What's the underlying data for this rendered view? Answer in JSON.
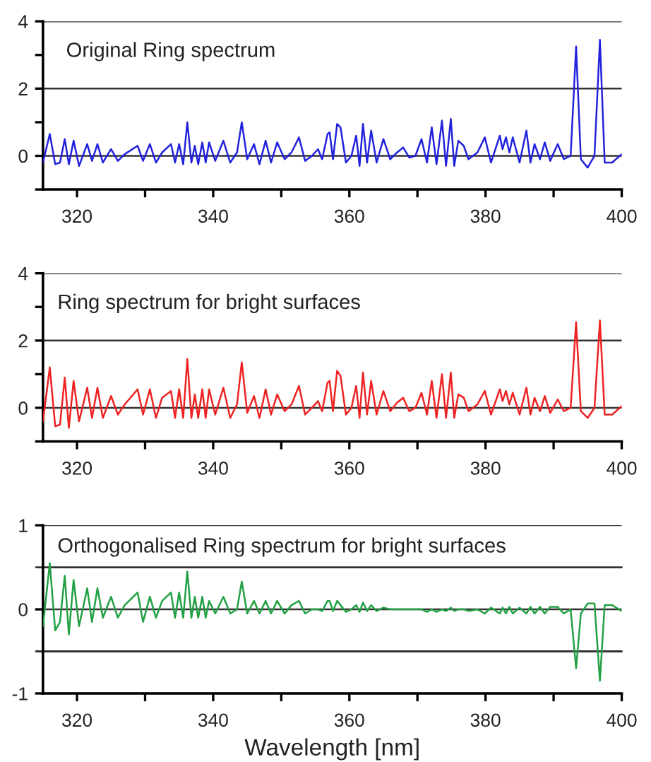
{
  "chart_data": [
    {
      "type": "line",
      "annotations": [
        "Original Ring spectrum"
      ],
      "xlim": [
        315,
        400
      ],
      "ylim": [
        -1,
        4
      ],
      "grid": "y",
      "legend": false,
      "marker": "none",
      "line_style": "solid",
      "xticks": [
        320,
        {
          "value": 330,
          "label": null
        },
        340,
        {
          "value": 350,
          "label": null
        },
        360,
        {
          "value": 370,
          "label": null
        },
        380,
        {
          "value": 390,
          "label": null
        },
        400
      ],
      "yticks": [
        {
          "value": -1,
          "label": null
        },
        0,
        {
          "value": 1,
          "label": null
        },
        2,
        {
          "value": 3,
          "label": null
        },
        4
      ],
      "x": [
        315,
        316,
        316.8,
        317.5,
        318.2,
        318.8,
        319.5,
        320.3,
        321.5,
        322.2,
        323,
        323.8,
        325,
        326,
        327,
        328.9,
        329.7,
        330.7,
        331.6,
        332.5,
        333.8,
        334.4,
        335,
        335.6,
        336.2,
        336.8,
        337.3,
        337.8,
        338.4,
        338.9,
        339.4,
        340.3,
        341.5,
        342.5,
        343.5,
        344.2,
        345,
        346,
        346.8,
        347.7,
        348.5,
        349.4,
        350.5,
        351.5,
        352.6,
        353.5,
        354.5,
        355.4,
        356,
        356.8,
        357.1,
        357.6,
        358.2,
        358.7,
        359.5,
        360.3,
        361,
        361.5,
        362,
        362.6,
        363.2,
        364,
        365,
        366,
        367,
        367.9,
        368.8,
        369.7,
        370.6,
        371.4,
        372.1,
        372.8,
        373.6,
        374.2,
        374.9,
        375.4,
        376,
        376.8,
        377.5,
        378.8,
        379.9,
        380.8,
        382.1,
        382.5,
        383,
        383.5,
        384,
        385,
        386,
        386.6,
        387.2,
        388,
        388.7,
        389.5,
        390.6,
        391.5,
        392.5,
        393.3,
        394,
        395,
        396,
        396.8,
        397.5,
        398.6,
        400
      ],
      "series": [
        {
          "color": "#2222dd",
          "values": [
            -0.2,
            0.65,
            -0.25,
            -0.2,
            0.5,
            -0.25,
            0.45,
            -0.3,
            0.35,
            -0.15,
            0.35,
            -0.2,
            0.2,
            -0.15,
            0.05,
            0.3,
            -0.15,
            0.35,
            -0.2,
            0.1,
            0.35,
            -0.2,
            0.35,
            -0.25,
            1.0,
            -0.2,
            0.3,
            -0.25,
            0.4,
            -0.2,
            0.4,
            -0.15,
            0.45,
            -0.2,
            0.1,
            1.0,
            -0.1,
            0.35,
            -0.25,
            0.45,
            -0.2,
            0.4,
            -0.1,
            0.1,
            0.55,
            -0.15,
            0.0,
            0.2,
            -0.1,
            0.65,
            0.7,
            -0.1,
            0.95,
            0.85,
            -0.2,
            0.0,
            0.6,
            -0.3,
            0.95,
            -0.2,
            0.75,
            -0.2,
            0.5,
            -0.1,
            0.1,
            0.25,
            -0.05,
            0.0,
            0.5,
            -0.2,
            0.85,
            -0.25,
            1.05,
            -0.3,
            1.1,
            -0.3,
            0.45,
            0.3,
            -0.1,
            0.1,
            0.55,
            -0.2,
            0.6,
            0.2,
            0.55,
            0.1,
            0.55,
            -0.2,
            0.75,
            -0.2,
            0.35,
            -0.1,
            0.4,
            -0.15,
            0.35,
            -0.1,
            0.0,
            3.25,
            -0.1,
            -0.35,
            0.0,
            3.45,
            -0.2,
            -0.2,
            0.05
          ]
        }
      ]
    },
    {
      "type": "line",
      "annotations": [
        "Ring spectrum for bright surfaces"
      ],
      "xlim": [
        315,
        400
      ],
      "ylim": [
        -1,
        4
      ],
      "grid": "y",
      "legend": false,
      "marker": "none",
      "line_style": "solid",
      "xticks": [
        320,
        {
          "value": 330,
          "label": null
        },
        340,
        {
          "value": 350,
          "label": null
        },
        360,
        {
          "value": 370,
          "label": null
        },
        380,
        {
          "value": 390,
          "label": null
        },
        400
      ],
      "yticks": [
        {
          "value": -1,
          "label": null
        },
        0,
        {
          "value": 1,
          "label": null
        },
        2,
        {
          "value": 3,
          "label": null
        },
        4
      ],
      "x": [
        315,
        316,
        316.8,
        317.5,
        318.2,
        318.8,
        319.5,
        320.3,
        321.5,
        322.2,
        323,
        323.8,
        325,
        326,
        327,
        328.9,
        329.7,
        330.7,
        331.6,
        332.5,
        333.8,
        334.4,
        335,
        335.6,
        336.2,
        336.8,
        337.3,
        337.8,
        338.4,
        338.9,
        339.4,
        340.3,
        341.5,
        342.5,
        343.5,
        344.2,
        345,
        346,
        346.8,
        347.7,
        348.5,
        349.4,
        350.5,
        351.5,
        352.6,
        353.5,
        354.5,
        355.4,
        356,
        356.8,
        357.1,
        357.6,
        358.2,
        358.7,
        359.5,
        360.3,
        361,
        361.5,
        362,
        362.6,
        363.2,
        364,
        365,
        366,
        367,
        367.9,
        368.8,
        369.7,
        370.6,
        371.4,
        372.1,
        372.8,
        373.6,
        374.2,
        374.9,
        375.4,
        376,
        376.8,
        377.5,
        378.8,
        379.9,
        380.8,
        382.1,
        382.5,
        383,
        383.5,
        384,
        385,
        386,
        386.6,
        387.2,
        388,
        388.7,
        389.5,
        390.6,
        391.5,
        392.5,
        393.3,
        394,
        395,
        396,
        396.8,
        397.5,
        398.6,
        400
      ],
      "series": [
        {
          "color": "#ee2222",
          "values": [
            -0.4,
            1.2,
            -0.55,
            -0.5,
            0.9,
            -0.6,
            0.8,
            -0.4,
            0.6,
            -0.3,
            0.6,
            -0.3,
            0.35,
            -0.2,
            0.1,
            0.55,
            -0.2,
            0.55,
            -0.3,
            0.3,
            0.5,
            -0.3,
            0.55,
            -0.3,
            1.45,
            -0.3,
            0.4,
            -0.3,
            0.55,
            -0.3,
            0.55,
            -0.2,
            0.6,
            -0.3,
            0.1,
            1.35,
            -0.15,
            0.35,
            -0.3,
            0.55,
            -0.2,
            0.4,
            -0.1,
            0.1,
            0.65,
            -0.2,
            0.0,
            0.2,
            -0.1,
            0.75,
            0.8,
            -0.1,
            1.1,
            0.95,
            -0.2,
            0.0,
            0.65,
            -0.3,
            1.05,
            -0.2,
            0.8,
            -0.2,
            0.5,
            -0.1,
            0.15,
            0.3,
            -0.1,
            0.0,
            0.45,
            -0.2,
            0.8,
            -0.3,
            1.0,
            -0.3,
            1.05,
            -0.3,
            0.4,
            0.3,
            -0.1,
            0.1,
            0.5,
            -0.2,
            0.55,
            0.2,
            0.5,
            0.1,
            0.45,
            -0.2,
            0.6,
            -0.2,
            0.3,
            -0.1,
            0.35,
            -0.15,
            0.25,
            -0.1,
            0.0,
            2.55,
            -0.1,
            -0.3,
            0.0,
            2.6,
            -0.2,
            -0.2,
            0.05
          ]
        }
      ]
    },
    {
      "type": "line",
      "annotations": [
        "Orthogonalised Ring spectrum for bright surfaces"
      ],
      "xlabel": "Wavelength [nm]",
      "xlim": [
        315,
        400
      ],
      "ylim": [
        -1,
        1
      ],
      "grid": "y",
      "legend": false,
      "marker": "none",
      "line_style": "solid",
      "xticks": [
        320,
        {
          "value": 330,
          "label": null
        },
        340,
        {
          "value": 350,
          "label": null
        },
        360,
        {
          "value": 370,
          "label": null
        },
        380,
        {
          "value": 390,
          "label": null
        },
        400
      ],
      "yticks": [
        -1,
        0,
        1
      ],
      "ref_lines": [
        {
          "axis": "y",
          "value": 0.5,
          "color": "#333333"
        },
        {
          "axis": "y",
          "value": -0.5,
          "color": "#333333"
        }
      ],
      "x": [
        315,
        316,
        316.8,
        317.5,
        318.2,
        318.8,
        319.5,
        320.3,
        321.5,
        322.2,
        323,
        323.8,
        325,
        326,
        327,
        328.9,
        329.7,
        330.7,
        331.6,
        332.5,
        333.8,
        334.4,
        335,
        335.6,
        336.2,
        336.8,
        337.3,
        337.8,
        338.4,
        338.9,
        339.4,
        340.3,
        341.5,
        342.5,
        343.5,
        344.2,
        345,
        346,
        346.8,
        347.7,
        348.5,
        349.4,
        350.5,
        351.5,
        352.6,
        353.5,
        354.5,
        355.4,
        356,
        356.8,
        357.1,
        357.6,
        358.2,
        358.7,
        359.5,
        360.3,
        361,
        361.5,
        362,
        362.6,
        363.2,
        364,
        365,
        366,
        367,
        367.9,
        368.8,
        369.7,
        370.6,
        371.4,
        372.1,
        372.8,
        373.6,
        374.2,
        374.9,
        375.4,
        376,
        376.8,
        377.5,
        378.8,
        379.9,
        380.8,
        382.1,
        382.5,
        383,
        383.5,
        384,
        385,
        386,
        386.6,
        387.2,
        388,
        388.7,
        389.5,
        390.6,
        391.5,
        392.5,
        393.3,
        394,
        395,
        396,
        396.8,
        397.5,
        398.6,
        400
      ],
      "series": [
        {
          "color": "#22a044",
          "values": [
            -0.2,
            0.55,
            -0.25,
            -0.15,
            0.4,
            -0.3,
            0.35,
            -0.2,
            0.25,
            -0.15,
            0.25,
            -0.1,
            0.15,
            -0.1,
            0.05,
            0.2,
            -0.15,
            0.15,
            -0.1,
            0.1,
            0.2,
            -0.1,
            0.2,
            -0.1,
            0.45,
            -0.1,
            0.15,
            -0.1,
            0.15,
            -0.1,
            0.1,
            -0.05,
            0.15,
            -0.05,
            0.0,
            0.33,
            -0.05,
            0.1,
            -0.05,
            0.1,
            -0.05,
            0.1,
            -0.05,
            0.05,
            0.1,
            -0.05,
            0.0,
            0.0,
            -0.02,
            0.1,
            0.1,
            -0.02,
            0.1,
            0.05,
            -0.03,
            0.0,
            0.05,
            -0.03,
            0.08,
            -0.02,
            0.05,
            -0.02,
            0.02,
            0.0,
            0.0,
            0.0,
            0.0,
            0.0,
            0.0,
            -0.03,
            0.0,
            -0.03,
            0.0,
            -0.02,
            0.02,
            -0.02,
            0.0,
            0.0,
            -0.02,
            0.0,
            -0.05,
            0.02,
            -0.05,
            0.02,
            -0.05,
            0.03,
            -0.05,
            0.02,
            -0.05,
            0.03,
            -0.05,
            0.03,
            -0.05,
            0.03,
            0.03,
            -0.05,
            0.0,
            -0.7,
            -0.05,
            0.07,
            0.07,
            -0.85,
            0.05,
            0.05,
            -0.02
          ]
        }
      ]
    }
  ]
}
